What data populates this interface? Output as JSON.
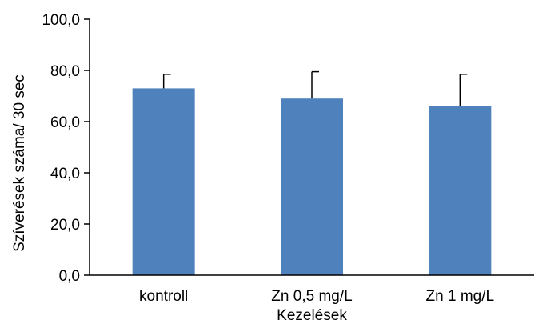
{
  "chart_data": {
    "type": "bar",
    "categories": [
      "kontroll",
      "Zn 0,5 mg/L",
      "Zn 1 mg/L"
    ],
    "values": [
      73.0,
      69.0,
      66.0
    ],
    "error_upper": [
      5.5,
      10.5,
      12.5
    ],
    "xlabel": "Kezelések",
    "ylabel": "Szíverések  száma/ 30 sec",
    "ylim": [
      0,
      100
    ],
    "yticks": [
      0,
      20,
      40,
      60,
      80,
      100
    ],
    "ytick_labels": [
      "0,0",
      "20,0",
      "40,0",
      "60,0",
      "80,0",
      "100,0"
    ],
    "grid": false,
    "legend": "none",
    "bar_color": "#4f81bd",
    "error_bar_color": "#000000"
  }
}
